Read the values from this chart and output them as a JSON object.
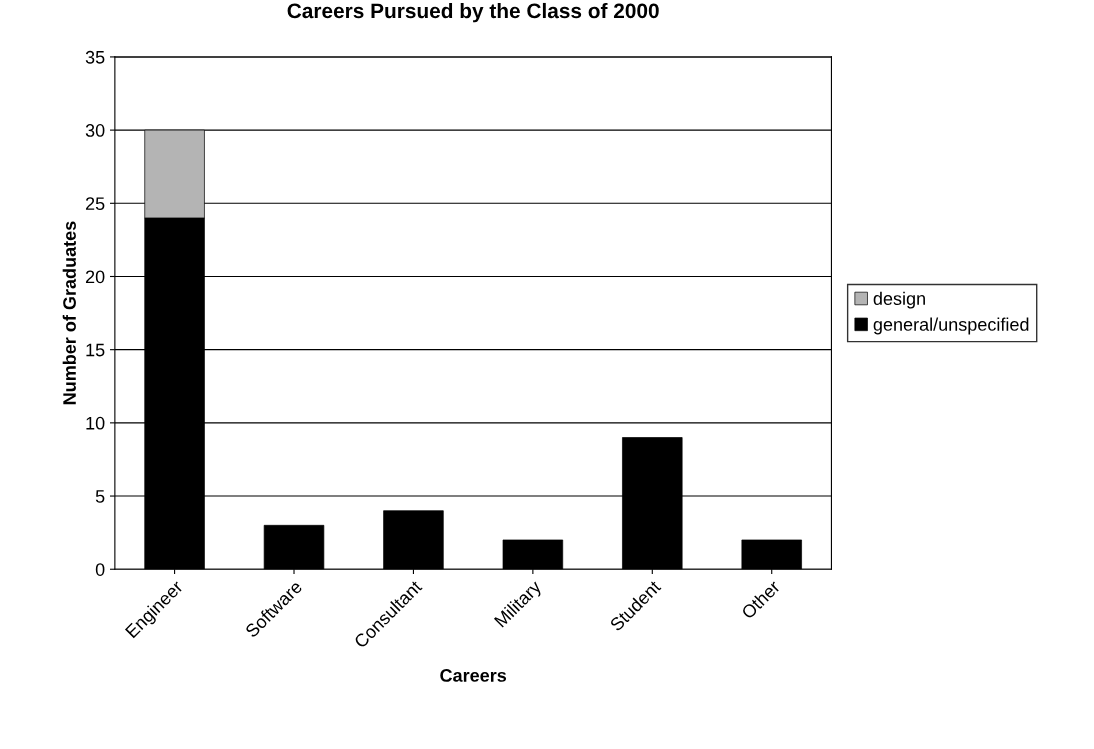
{
  "chart_data": {
    "type": "bar",
    "title": "Careers Pursued by the Class of 2000",
    "xlabel": "Careers",
    "ylabel": "Number of Graduates",
    "categories": [
      "Engineer",
      "Software",
      "Consultant",
      "Military",
      "Student",
      "Other"
    ],
    "series": [
      {
        "name": "general/unspecified",
        "color": "#000000",
        "values": [
          24,
          3,
          4,
          2,
          9,
          2
        ]
      },
      {
        "name": "design",
        "color": "#b4b4b4",
        "values": [
          6,
          null,
          null,
          null,
          null,
          null
        ]
      }
    ],
    "stacked": true,
    "ylim": [
      0,
      35
    ],
    "yticks": [
      0,
      5,
      10,
      15,
      20,
      25,
      30,
      35
    ],
    "grid": "y",
    "legend": "right"
  }
}
